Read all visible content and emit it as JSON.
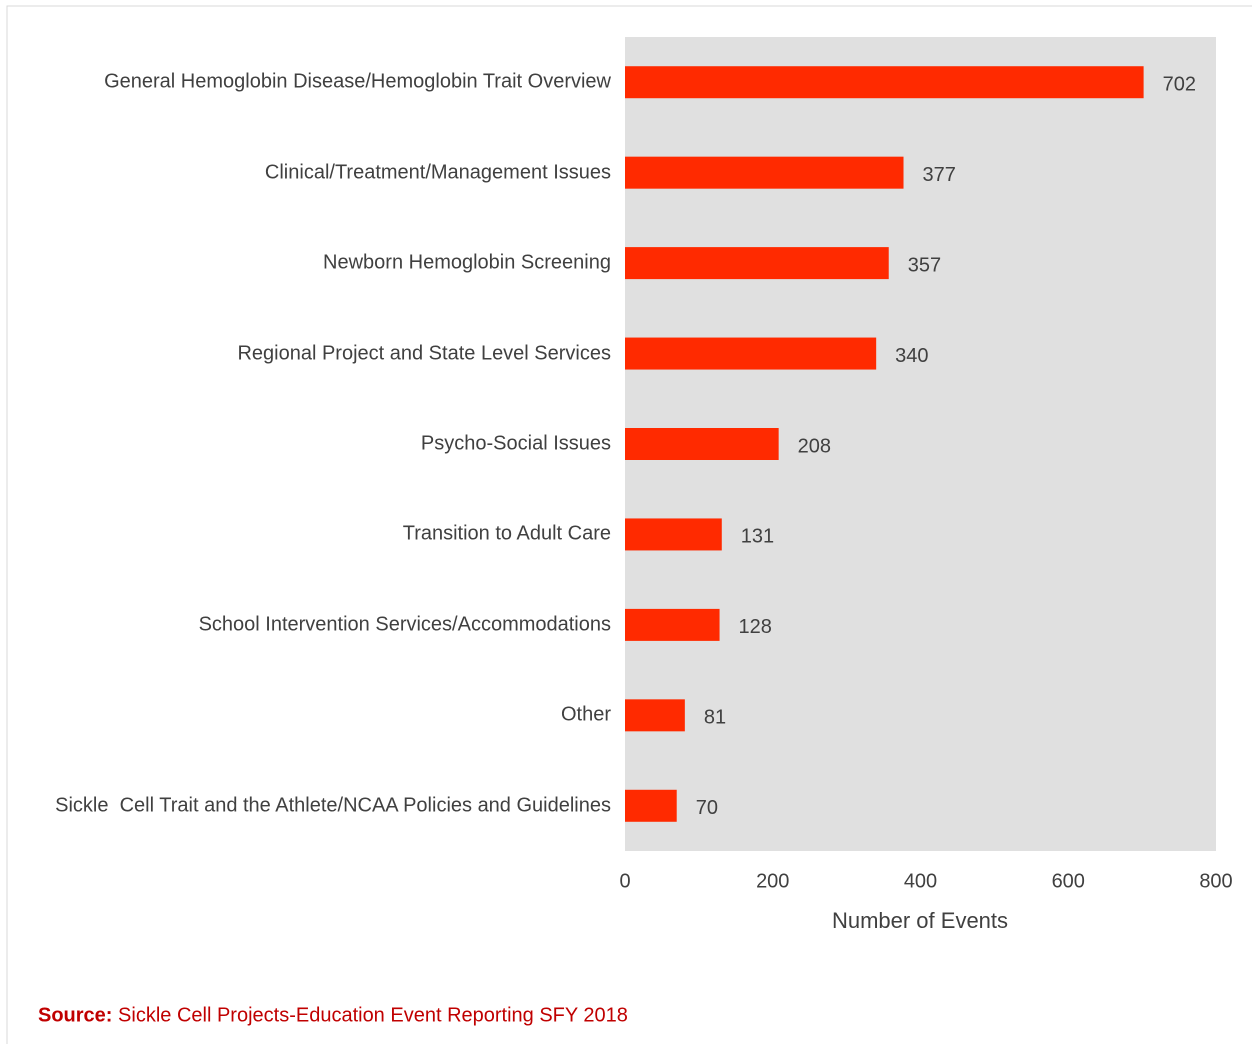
{
  "chart_data": {
    "type": "barh",
    "categories": [
      "General Hemoglobin Disease/Hemoglobin Trait Overview",
      "Clinical/Treatment/Management Issues",
      "Newborn Hemoglobin Screening",
      "Regional Project and State Level Services",
      "Psycho-Social Issues",
      "Transition to Adult Care",
      "School Intervention Services/Accommodations",
      "Other",
      "Sickle  Cell Trait and the Athlete/NCAA Policies and Guidelines"
    ],
    "values": [
      702,
      377,
      357,
      340,
      208,
      131,
      128,
      81,
      70
    ],
    "color": "#ff2a00",
    "xlim": [
      0,
      800
    ],
    "xticks": [
      0,
      200,
      400,
      600,
      800
    ],
    "xlabel": "Number of Events",
    "source_label": "Source:",
    "source": "Sickle Cell Projects-Education Event Reporting SFY 2018"
  }
}
